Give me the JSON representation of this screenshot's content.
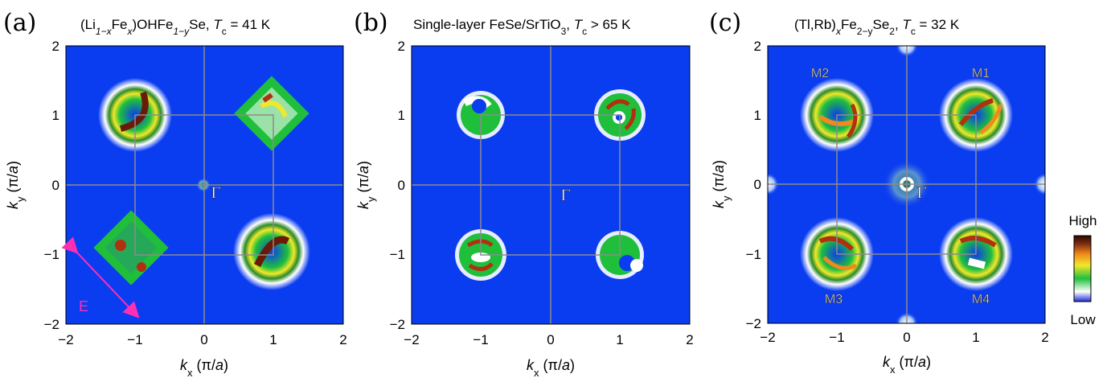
{
  "figure": {
    "panels": [
      {
        "id": "a",
        "label": "(a)",
        "title_parts": [
          "(Li",
          "1−x",
          "Fe",
          "x",
          ")OHFe",
          "1−y",
          "Se, ",
          "T",
          "c",
          " = 41 K"
        ],
        "xlabel_main": "k",
        "xlabel_sub": "x",
        "xlabel_unit_pre": " (π/",
        "xlabel_unit_a": "a",
        "xlabel_unit_post": ")",
        "ylabel_main": "k",
        "ylabel_sub": "y",
        "ylabel_unit_pre": " (π/",
        "ylabel_unit_a": "a",
        "ylabel_unit_post": ")",
        "xticks": [
          "−2",
          "−1",
          "0",
          "1",
          "2"
        ],
        "yticks": [
          "2",
          "1",
          "0",
          "−1",
          "−2"
        ],
        "gamma_label": "Γ",
        "polarization_label": "E"
      },
      {
        "id": "b",
        "label": "(b)",
        "title_parts": [
          "Single-layer FeSe/SrTiO",
          "3",
          ", ",
          "T",
          "c",
          " > 65 K"
        ],
        "xlabel_main": "k",
        "xlabel_sub": "x",
        "xlabel_unit_pre": " (π/",
        "xlabel_unit_a": "a",
        "xlabel_unit_post": ")",
        "ylabel_main": "k",
        "ylabel_sub": "y",
        "ylabel_unit_pre": " (π/",
        "ylabel_unit_a": "a",
        "ylabel_unit_post": ")",
        "xticks": [
          "−2",
          "−1",
          "0",
          "1",
          "2"
        ],
        "yticks": [
          "2",
          "1",
          "0",
          "−1",
          "−2"
        ],
        "gamma_label": "Γ"
      },
      {
        "id": "c",
        "label": "(c)",
        "title_parts": [
          "(Tl,Rb)",
          "x",
          "Fe",
          "2−y",
          "Se",
          "2",
          ", ",
          "T",
          "c",
          " = 32 K"
        ],
        "xlabel_main": "k",
        "xlabel_sub": "x",
        "xlabel_unit_pre": " (π/",
        "xlabel_unit_a": "a",
        "xlabel_unit_post": ")",
        "ylabel_main": "k",
        "ylabel_sub": "y",
        "ylabel_unit_pre": " (π/",
        "ylabel_unit_a": "a",
        "ylabel_unit_post": ")",
        "xticks": [
          "−2",
          "−1",
          "0",
          "1",
          "2"
        ],
        "yticks": [
          "2",
          "1",
          "0",
          "−1",
          "−2"
        ],
        "gamma_label": "Γ",
        "corner_labels": [
          "M2",
          "M1",
          "M3",
          "M4"
        ]
      }
    ],
    "colorbar": {
      "high_label": "High",
      "low_label": "Low",
      "colors": [
        "#1a2bd6",
        "#ffffff",
        "#1fbf3c",
        "#f2e82a",
        "#f08a1c",
        "#7a2a10",
        "#2a0a02"
      ]
    },
    "colors": {
      "background_map": "#0a3cf0",
      "grid_line": "#8c8c8c",
      "polarization_arrow": "#ff2fb4"
    }
  },
  "chart_data": [
    {
      "type": "heatmap",
      "panel": "a",
      "xlim": [
        -2,
        2
      ],
      "ylim": [
        -2,
        2
      ],
      "x_ticks": [
        -2,
        -1,
        0,
        1,
        2
      ],
      "y_ticks": [
        -2,
        -1,
        0,
        1,
        2
      ],
      "pockets": [
        [
          -1,
          1
        ],
        [
          1,
          1
        ],
        [
          -1,
          -1
        ],
        [
          1,
          -1
        ],
        [
          0,
          0
        ]
      ]
    },
    {
      "type": "heatmap",
      "panel": "b",
      "xlim": [
        -2,
        2
      ],
      "ylim": [
        -2,
        2
      ],
      "x_ticks": [
        -2,
        -1,
        0,
        1,
        2
      ],
      "y_ticks": [
        -2,
        -1,
        0,
        1,
        2
      ],
      "pockets": [
        [
          -1,
          1
        ],
        [
          1,
          1
        ],
        [
          -1,
          -1
        ],
        [
          1,
          -1
        ]
      ]
    },
    {
      "type": "heatmap",
      "panel": "c",
      "xlim": [
        -2,
        2
      ],
      "ylim": [
        -2,
        2
      ],
      "x_ticks": [
        -2,
        -1,
        0,
        1,
        2
      ],
      "y_ticks": [
        -2,
        -1,
        0,
        1,
        2
      ],
      "pockets": [
        [
          -1,
          1
        ],
        [
          1,
          1
        ],
        [
          -1,
          -1
        ],
        [
          1,
          -1
        ],
        [
          0,
          0
        ]
      ]
    }
  ]
}
